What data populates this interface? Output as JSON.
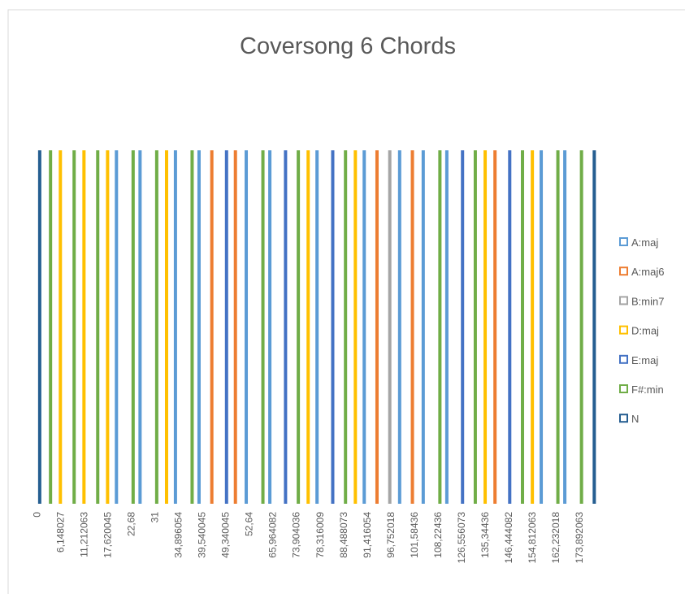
{
  "chart_data": {
    "type": "bar",
    "title": "Coversong 6 Chords",
    "categories": [
      "0",
      null,
      "6,148027",
      null,
      "11,212063",
      null,
      "17,620045",
      null,
      "22,68",
      null,
      "31",
      null,
      "34,896054",
      null,
      "39,540045",
      null,
      "49,340045",
      null,
      "52,64",
      null,
      "65,964082",
      null,
      "73,904036",
      null,
      "78,316009",
      null,
      "88,488073",
      null,
      "91,416054",
      null,
      "96,752018",
      null,
      "101,58436",
      null,
      "108,22436",
      null,
      "126,556073",
      null,
      "135,34436",
      null,
      "146,444082",
      null,
      "154,812063",
      null,
      "162,232018",
      null,
      "173,892063",
      null
    ],
    "ylim": [
      0,
      1
    ],
    "series": [
      {
        "name": "A:maj",
        "color": "#5b9bd5",
        "values": [
          null,
          null,
          null,
          null,
          null,
          null,
          null,
          1,
          null,
          1,
          null,
          null,
          1,
          null,
          1,
          null,
          null,
          null,
          1,
          null,
          1,
          null,
          null,
          null,
          1,
          null,
          null,
          null,
          1,
          null,
          null,
          1,
          null,
          1,
          null,
          1,
          null,
          null,
          null,
          null,
          null,
          null,
          null,
          1,
          null,
          1,
          null,
          null
        ]
      },
      {
        "name": "A:maj6",
        "color": "#ed7d31",
        "values": [
          null,
          null,
          null,
          null,
          null,
          null,
          null,
          null,
          null,
          null,
          null,
          null,
          null,
          null,
          null,
          1,
          null,
          1,
          null,
          null,
          null,
          null,
          null,
          null,
          null,
          null,
          null,
          null,
          null,
          1,
          null,
          null,
          1,
          null,
          null,
          null,
          null,
          null,
          null,
          1,
          null,
          null,
          null,
          null,
          null,
          null,
          null,
          null
        ]
      },
      {
        "name": "B:min7",
        "color": "#a5a5a5",
        "values": [
          null,
          null,
          null,
          null,
          null,
          null,
          null,
          null,
          null,
          null,
          null,
          null,
          null,
          null,
          null,
          null,
          null,
          null,
          null,
          null,
          null,
          null,
          null,
          null,
          null,
          null,
          null,
          null,
          null,
          null,
          1,
          null,
          null,
          null,
          null,
          null,
          null,
          null,
          null,
          null,
          null,
          null,
          null,
          null,
          null,
          null,
          null,
          null
        ]
      },
      {
        "name": "D:maj",
        "color": "#ffc000",
        "values": [
          null,
          null,
          1,
          null,
          1,
          null,
          1,
          null,
          null,
          null,
          null,
          1,
          null,
          null,
          null,
          null,
          null,
          null,
          null,
          null,
          null,
          null,
          null,
          1,
          null,
          null,
          null,
          1,
          null,
          null,
          null,
          null,
          null,
          null,
          null,
          null,
          null,
          null,
          1,
          null,
          null,
          null,
          1,
          null,
          null,
          null,
          null,
          null
        ]
      },
      {
        "name": "E:maj",
        "color": "#4472c4",
        "values": [
          null,
          null,
          null,
          null,
          null,
          null,
          null,
          null,
          null,
          null,
          null,
          null,
          null,
          null,
          null,
          null,
          1,
          null,
          null,
          null,
          null,
          1,
          null,
          null,
          null,
          1,
          null,
          null,
          null,
          null,
          null,
          null,
          null,
          null,
          null,
          null,
          1,
          null,
          null,
          null,
          1,
          null,
          null,
          null,
          null,
          null,
          null,
          null
        ]
      },
      {
        "name": "F#:min",
        "color": "#70ad47",
        "values": [
          null,
          1,
          null,
          1,
          null,
          1,
          null,
          null,
          1,
          null,
          1,
          null,
          null,
          1,
          null,
          null,
          null,
          null,
          null,
          1,
          null,
          null,
          1,
          null,
          null,
          null,
          1,
          null,
          null,
          null,
          null,
          null,
          null,
          null,
          1,
          null,
          null,
          1,
          null,
          null,
          null,
          1,
          null,
          null,
          1,
          null,
          1,
          null
        ]
      },
      {
        "name": "N",
        "color": "#255e91",
        "values": [
          1,
          null,
          null,
          null,
          null,
          null,
          null,
          null,
          null,
          null,
          null,
          null,
          null,
          null,
          null,
          null,
          null,
          null,
          null,
          null,
          null,
          null,
          null,
          null,
          null,
          null,
          null,
          null,
          null,
          null,
          null,
          null,
          null,
          null,
          null,
          null,
          null,
          null,
          null,
          null,
          null,
          null,
          null,
          null,
          null,
          null,
          null,
          1
        ]
      }
    ]
  }
}
